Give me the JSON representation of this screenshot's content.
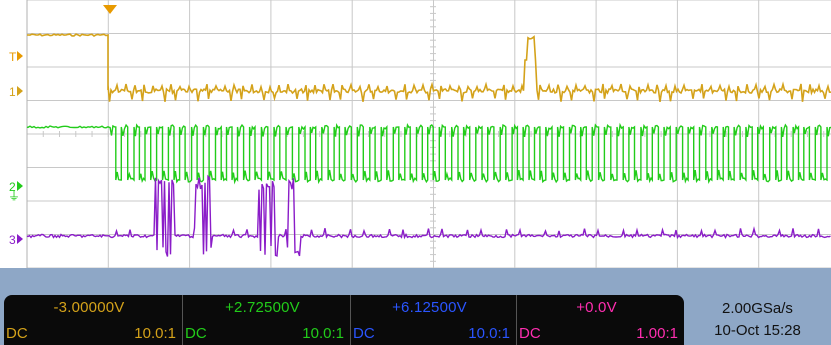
{
  "colors": {
    "ch1": "#d4a21a",
    "ch2": "#22cc1a",
    "ch3": "#2a55ff",
    "ch4": "#ff2eb0",
    "ch3_trace": "#8a1cc8",
    "grid": "#c8c8c8",
    "trigger": "#e89a00"
  },
  "markers": {
    "trigger_level": "T",
    "ch1": "1",
    "ch2": "2",
    "ch3": "3"
  },
  "channels": [
    {
      "scale": "-3.00000V",
      "coupling": "DC",
      "probe": "10.0:1"
    },
    {
      "scale": "+2.72500V",
      "coupling": "DC",
      "probe": "10.0:1"
    },
    {
      "scale": "+6.12500V",
      "coupling": "DC",
      "probe": "10.0:1"
    },
    {
      "scale": "+0.0V",
      "coupling": "DC",
      "probe": "1.00:1"
    }
  ],
  "acquisition": {
    "sample_rate": "2.00GSa/s",
    "date_time": "10-Oct 15:28"
  }
}
